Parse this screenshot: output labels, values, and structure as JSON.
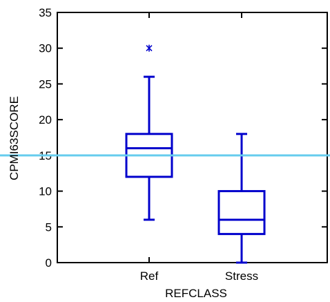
{
  "chart_data": {
    "type": "box",
    "xlabel": "REFCLASS",
    "ylabel": "CPMI63SCORE",
    "ylim": [
      0,
      35
    ],
    "yticks": [
      0,
      5,
      10,
      15,
      20,
      25,
      30,
      35
    ],
    "categories": [
      "Ref",
      "Stress"
    ],
    "boxes": [
      {
        "category": "Ref",
        "whisker_low": 6,
        "q1": 12,
        "median": 16,
        "q3": 18,
        "whisker_high": 26,
        "outliers": [
          30
        ]
      },
      {
        "category": "Stress",
        "whisker_low": 0,
        "q1": 4,
        "median": 6,
        "q3": 10,
        "whisker_high": 18,
        "outliers": []
      }
    ],
    "reference_line": {
      "y": 15,
      "color": "#66ccee"
    },
    "box_color": "#0000cc",
    "grid": false,
    "legend": "none"
  }
}
